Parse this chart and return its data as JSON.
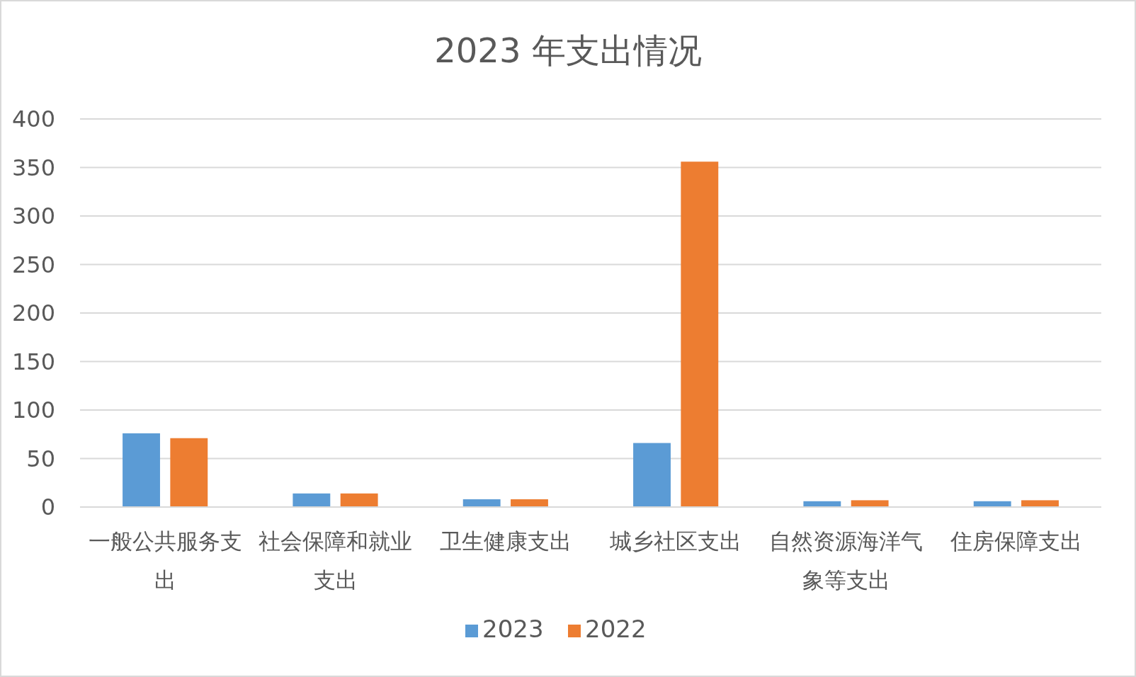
{
  "chart_data": {
    "type": "bar",
    "title": "2023 年支出情况",
    "categories": [
      "一般公共服务支出",
      "社会保障和就业支出",
      "卫生健康支出",
      "城乡社区支出",
      "自然资源海洋气象等支出",
      "住房保障支出"
    ],
    "series": [
      {
        "name": "2023",
        "color": "#5b9bd5",
        "values": [
          76,
          14,
          8,
          66,
          6,
          6
        ]
      },
      {
        "name": "2022",
        "color": "#ed7d31",
        "values": [
          71,
          14,
          8,
          356,
          7,
          7
        ]
      }
    ],
    "ylim": [
      0,
      400
    ],
    "yticks": [
      0,
      50,
      100,
      150,
      200,
      250,
      300,
      350,
      400
    ],
    "grid": "y",
    "legend": "bottom"
  }
}
